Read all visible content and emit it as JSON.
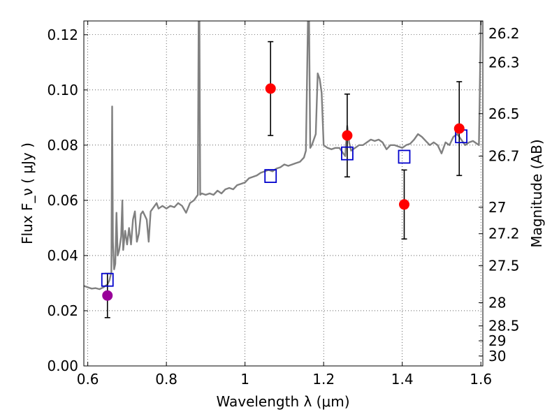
{
  "chart_data": {
    "type": "scatter",
    "xlabel": "Wavelength  λ (μm)",
    "ylabel_left": "Flux  F_ν  ( μJy )",
    "ylabel_right": "Magnitude (AB)",
    "xlim": [
      0.59,
      1.605
    ],
    "ylim": [
      0.0,
      0.125
    ],
    "grid": true,
    "x_ticks": [
      0.6,
      0.8,
      1.0,
      1.2,
      1.4,
      1.6
    ],
    "x_tick_labels": [
      "0.6",
      "0.8",
      "1",
      "1.2",
      "1.4",
      "1.6"
    ],
    "y_ticks": [
      0.0,
      0.02,
      0.04,
      0.06,
      0.08,
      0.1,
      0.12
    ],
    "y_tick_labels": [
      "0.00",
      "0.02",
      "0.04",
      "0.06",
      "0.08",
      "0.10",
      "0.12"
    ],
    "right_ticks": [
      {
        "label": "26.2",
        "flux": 0.1205
      },
      {
        "label": "26.3",
        "flux": 0.1099
      },
      {
        "label": "26.5",
        "flux": 0.0914
      },
      {
        "label": "26.7",
        "flux": 0.076
      },
      {
        "label": "27",
        "flux": 0.0575
      },
      {
        "label": "27.2",
        "flux": 0.0479
      },
      {
        "label": "27.5",
        "flux": 0.0363
      },
      {
        "label": "28",
        "flux": 0.0229
      },
      {
        "label": "28.5",
        "flux": 0.0145
      },
      {
        "label": "29",
        "flux": 0.0091
      },
      {
        "label": "30",
        "flux": 0.0036
      }
    ],
    "series": [
      {
        "kind": "spectrum",
        "color": "#808080",
        "points": [
          [
            0.59,
            0.029
          ],
          [
            0.6,
            0.0285
          ],
          [
            0.61,
            0.028
          ],
          [
            0.62,
            0.0282
          ],
          [
            0.63,
            0.0278
          ],
          [
            0.64,
            0.0285
          ],
          [
            0.645,
            0.029
          ],
          [
            0.65,
            0.0295
          ],
          [
            0.655,
            0.031
          ],
          [
            0.66,
            0.034
          ],
          [
            0.662,
            0.094
          ],
          [
            0.664,
            0.045
          ],
          [
            0.667,
            0.035
          ],
          [
            0.67,
            0.037
          ],
          [
            0.673,
            0.0555
          ],
          [
            0.676,
            0.04
          ],
          [
            0.68,
            0.042
          ],
          [
            0.685,
            0.047
          ],
          [
            0.688,
            0.06
          ],
          [
            0.69,
            0.042
          ],
          [
            0.695,
            0.049
          ],
          [
            0.7,
            0.044
          ],
          [
            0.705,
            0.05
          ],
          [
            0.71,
            0.044
          ],
          [
            0.715,
            0.053
          ],
          [
            0.72,
            0.056
          ],
          [
            0.725,
            0.045
          ],
          [
            0.73,
            0.048
          ],
          [
            0.735,
            0.055
          ],
          [
            0.74,
            0.056
          ],
          [
            0.75,
            0.053
          ],
          [
            0.755,
            0.045
          ],
          [
            0.76,
            0.056
          ],
          [
            0.77,
            0.058
          ],
          [
            0.775,
            0.059
          ],
          [
            0.78,
            0.057
          ],
          [
            0.79,
            0.058
          ],
          [
            0.8,
            0.057
          ],
          [
            0.81,
            0.058
          ],
          [
            0.82,
            0.0575
          ],
          [
            0.83,
            0.059
          ],
          [
            0.84,
            0.058
          ],
          [
            0.85,
            0.0555
          ],
          [
            0.86,
            0.059
          ],
          [
            0.87,
            0.06
          ],
          [
            0.875,
            0.061
          ],
          [
            0.88,
            0.062
          ],
          [
            0.882,
            0.125
          ],
          [
            0.884,
            0.125
          ],
          [
            0.886,
            0.062
          ],
          [
            0.89,
            0.0625
          ],
          [
            0.9,
            0.062
          ],
          [
            0.91,
            0.0625
          ],
          [
            0.92,
            0.062
          ],
          [
            0.93,
            0.0635
          ],
          [
            0.94,
            0.0625
          ],
          [
            0.95,
            0.064
          ],
          [
            0.96,
            0.0645
          ],
          [
            0.97,
            0.064
          ],
          [
            0.98,
            0.0655
          ],
          [
            0.99,
            0.066
          ],
          [
            1.0,
            0.0665
          ],
          [
            1.01,
            0.068
          ],
          [
            1.02,
            0.0685
          ],
          [
            1.03,
            0.069
          ],
          [
            1.04,
            0.07
          ],
          [
            1.05,
            0.0705
          ],
          [
            1.06,
            0.071
          ],
          [
            1.07,
            0.0705
          ],
          [
            1.08,
            0.0715
          ],
          [
            1.09,
            0.072
          ],
          [
            1.1,
            0.073
          ],
          [
            1.11,
            0.0725
          ],
          [
            1.12,
            0.073
          ],
          [
            1.13,
            0.0735
          ],
          [
            1.14,
            0.074
          ],
          [
            1.15,
            0.0755
          ],
          [
            1.155,
            0.078
          ],
          [
            1.16,
            0.125
          ],
          [
            1.163,
            0.125
          ],
          [
            1.166,
            0.079
          ],
          [
            1.17,
            0.08
          ],
          [
            1.18,
            0.084
          ],
          [
            1.185,
            0.106
          ],
          [
            1.19,
            0.104
          ],
          [
            1.195,
            0.099
          ],
          [
            1.2,
            0.08
          ],
          [
            1.21,
            0.079
          ],
          [
            1.22,
            0.0785
          ],
          [
            1.23,
            0.079
          ],
          [
            1.24,
            0.079
          ],
          [
            1.25,
            0.077
          ],
          [
            1.255,
            0.076
          ],
          [
            1.26,
            0.087
          ],
          [
            1.265,
            0.081
          ],
          [
            1.27,
            0.078
          ],
          [
            1.28,
            0.079
          ],
          [
            1.29,
            0.08
          ],
          [
            1.3,
            0.08
          ],
          [
            1.31,
            0.081
          ],
          [
            1.32,
            0.082
          ],
          [
            1.33,
            0.0815
          ],
          [
            1.34,
            0.082
          ],
          [
            1.35,
            0.081
          ],
          [
            1.36,
            0.0785
          ],
          [
            1.37,
            0.08
          ],
          [
            1.38,
            0.08
          ],
          [
            1.39,
            0.0795
          ],
          [
            1.4,
            0.079
          ],
          [
            1.41,
            0.08
          ],
          [
            1.42,
            0.0805
          ],
          [
            1.43,
            0.082
          ],
          [
            1.44,
            0.084
          ],
          [
            1.45,
            0.083
          ],
          [
            1.46,
            0.0815
          ],
          [
            1.47,
            0.08
          ],
          [
            1.48,
            0.081
          ],
          [
            1.49,
            0.08
          ],
          [
            1.5,
            0.077
          ],
          [
            1.51,
            0.081
          ],
          [
            1.52,
            0.08
          ],
          [
            1.53,
            0.083
          ],
          [
            1.54,
            0.084
          ],
          [
            1.55,
            0.082
          ],
          [
            1.56,
            0.08
          ],
          [
            1.57,
            0.081
          ],
          [
            1.58,
            0.0815
          ],
          [
            1.59,
            0.0805
          ],
          [
            1.595,
            0.08
          ],
          [
            1.6,
            0.125
          ],
          [
            1.605,
            0.125
          ]
        ]
      },
      {
        "kind": "model_photometry",
        "marker": "open-square",
        "color": "#0000cc",
        "points": [
          [
            0.65,
            0.0312
          ],
          [
            1.065,
            0.0688
          ],
          [
            1.26,
            0.077
          ],
          [
            1.405,
            0.0758
          ],
          [
            1.55,
            0.0832
          ]
        ]
      },
      {
        "kind": "observed_photometry",
        "marker": "filled-circle",
        "points": [
          {
            "x": 0.65,
            "y": 0.0255,
            "err": 0.008,
            "color": "#990099"
          },
          {
            "x": 1.065,
            "y": 0.1005,
            "err": 0.017,
            "color": "#ff0000"
          },
          {
            "x": 1.26,
            "y": 0.0835,
            "err": 0.015,
            "color": "#ff0000"
          },
          {
            "x": 1.405,
            "y": 0.0585,
            "err": 0.0125,
            "color": "#ff0000"
          },
          {
            "x": 1.545,
            "y": 0.086,
            "err": 0.017,
            "color": "#ff0000"
          }
        ]
      }
    ]
  }
}
